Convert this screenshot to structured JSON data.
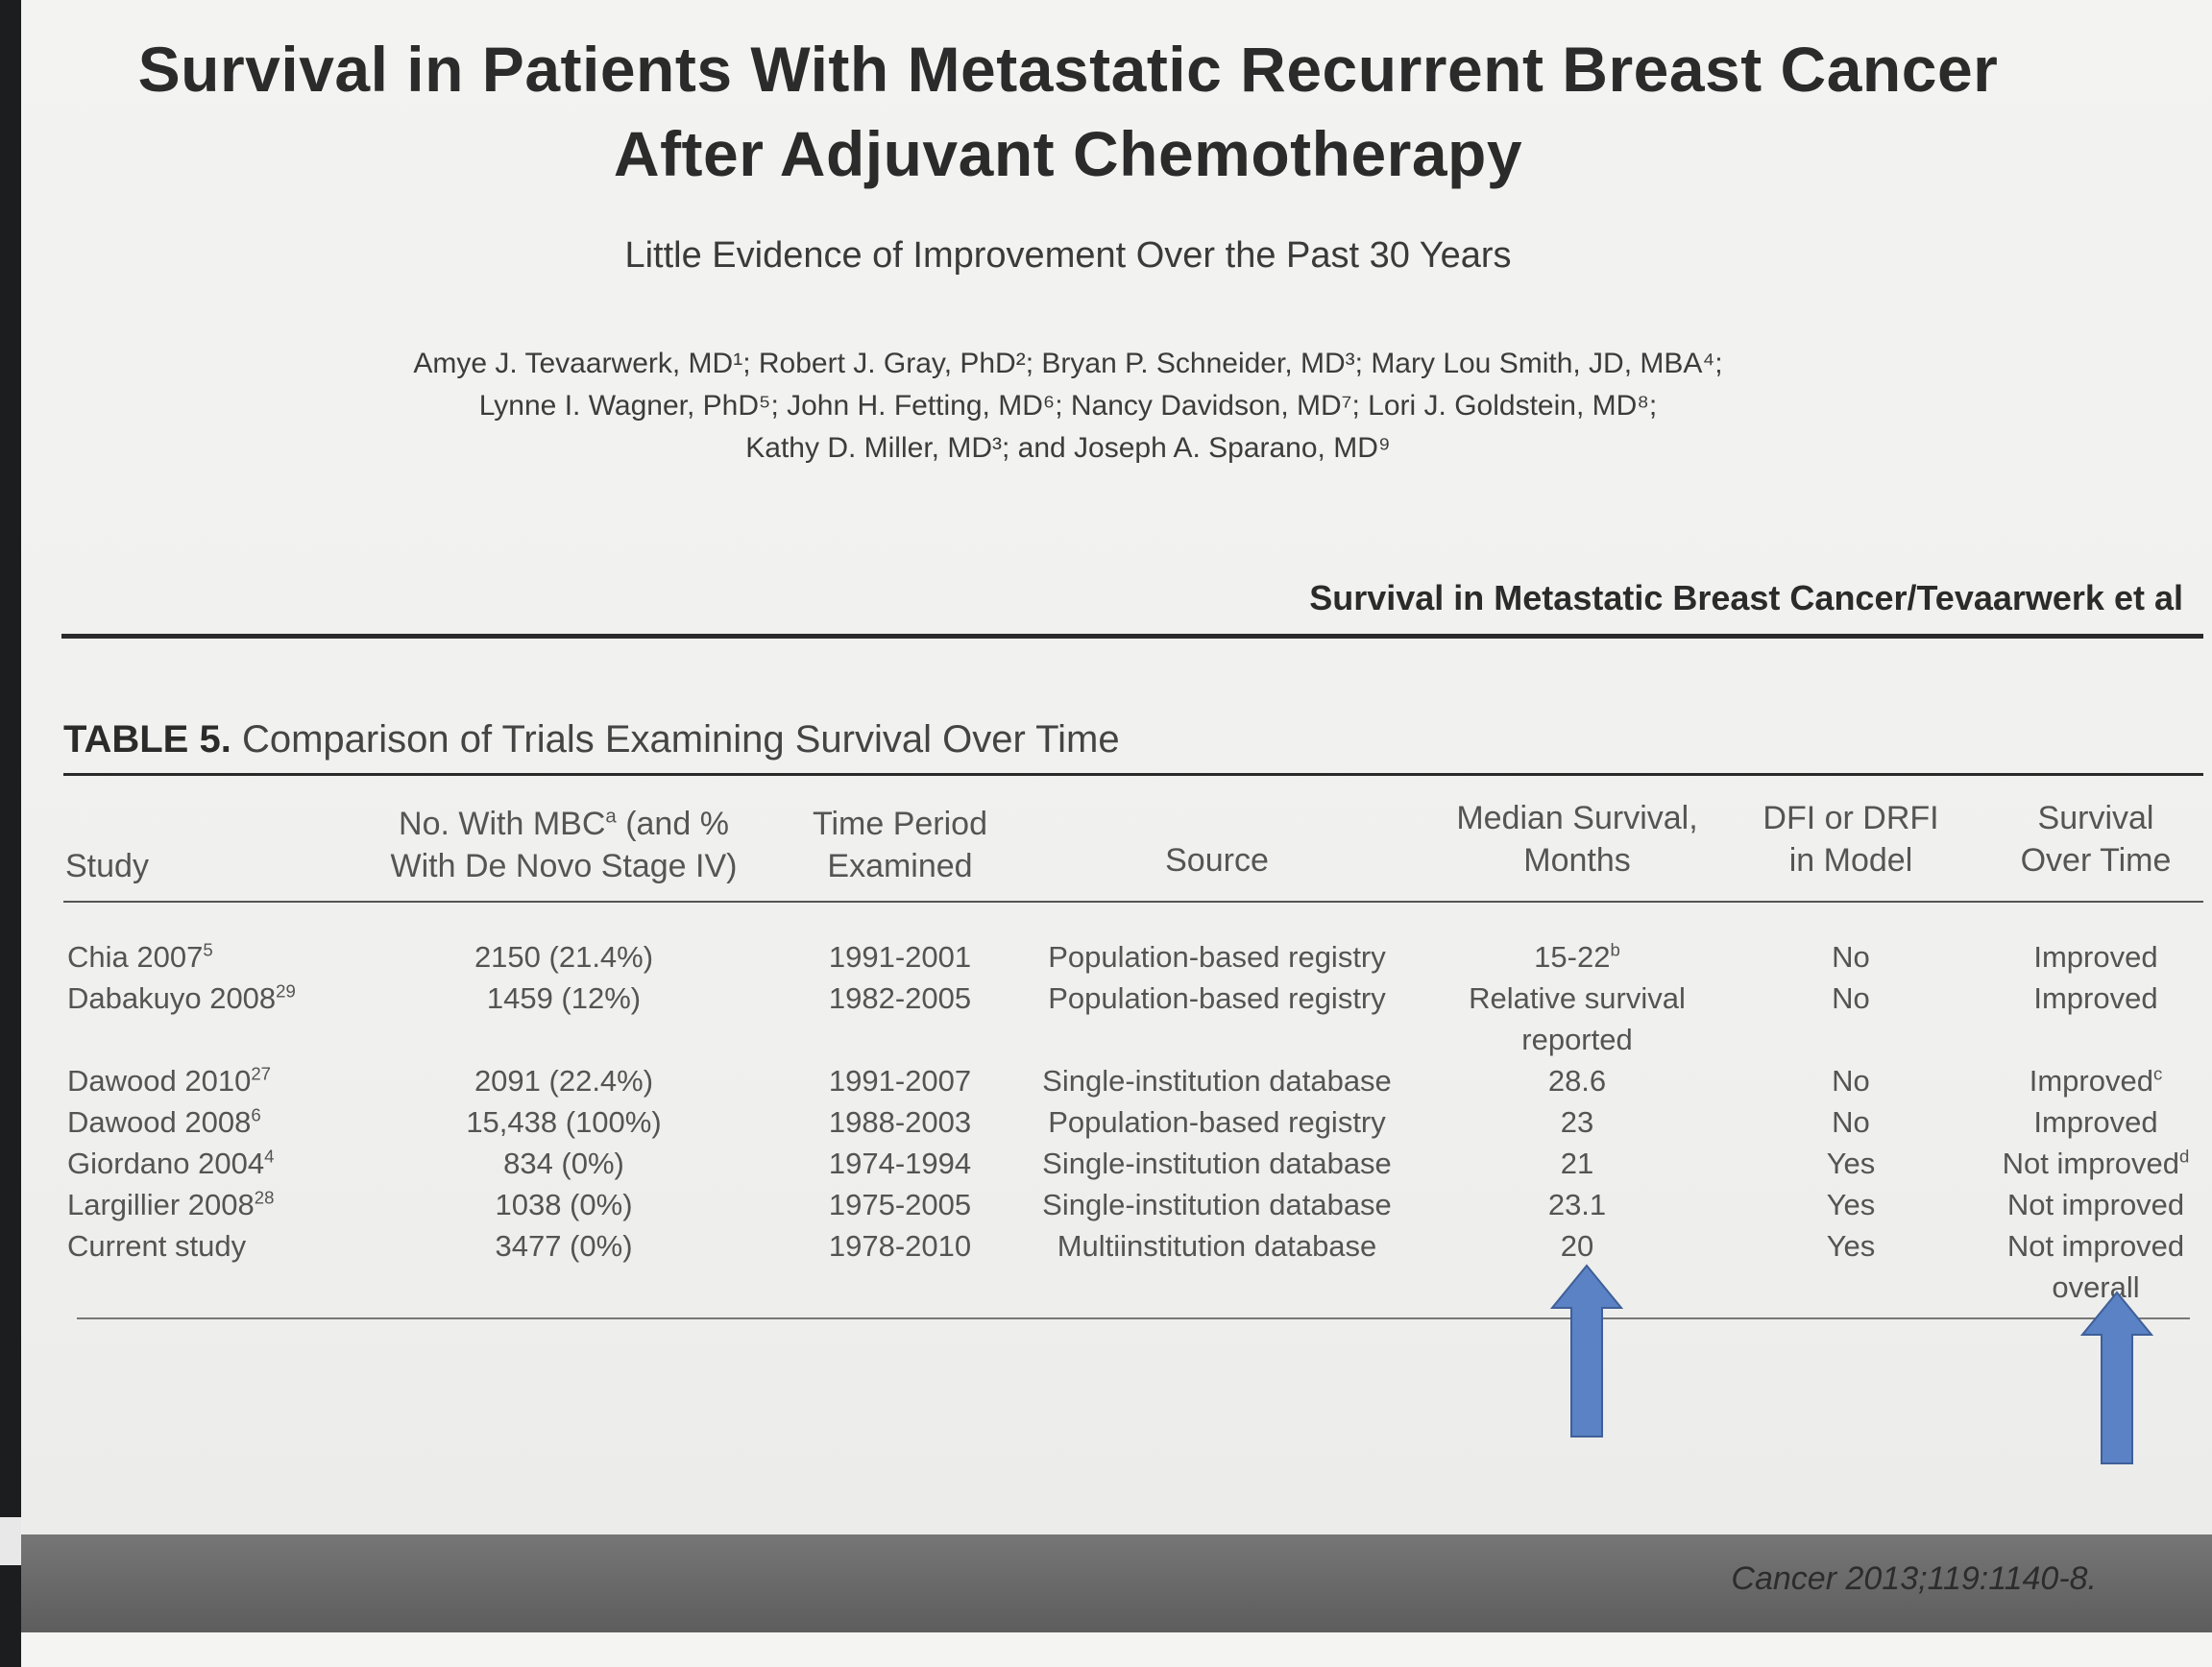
{
  "header": {
    "title_line1": "Survival in Patients With Metastatic Recurrent Breast Cancer",
    "title_line2": "After Adjuvant Chemotherapy",
    "subtitle": "Little Evidence of Improvement Over the Past 30 Years",
    "authors_line1": "Amye J. Tevaarwerk, MD¹; Robert J. Gray, PhD²; Bryan P. Schneider, MD³; Mary Lou Smith, JD, MBA⁴;",
    "authors_line2": "Lynne I. Wagner, PhD⁵; John H. Fetting, MD⁶; Nancy Davidson, MD⁷; Lori J. Goldstein, MD⁸;",
    "authors_line3": "Kathy D. Miller, MD³; and Joseph A. Sparano, MD⁹",
    "running_header": "Survival in Metastatic Breast Cancer/Tevaarwerk et al"
  },
  "table": {
    "label": "TABLE 5.",
    "caption": "Comparison of Trials Examining Survival Over Time",
    "columns": {
      "study": "Study",
      "mbc_line1": "No. With MBC",
      "mbc_sup": "a",
      "mbc_line1_tail": " (and %",
      "mbc_line2": "With De Novo Stage IV)",
      "period_line1": "Time Period",
      "period_line2": "Examined",
      "source": "Source",
      "median_line1": "Median Survival,",
      "median_line2": "Months",
      "dfi_line1": "DFI or DRFI",
      "dfi_line2": "in Model",
      "sot_line1": "Survival",
      "sot_line2": "Over Time"
    },
    "rows": [
      {
        "study": "Chia 2007",
        "ref": "5",
        "mbc": "2150 (21.4%)",
        "period": "1991-2001",
        "source": "Population-based registry",
        "median": "15-22",
        "median_sup": "b",
        "median_line2": "",
        "dfi": "No",
        "survival": "Improved",
        "survival_sup": "",
        "survival_line2": ""
      },
      {
        "study": "Dabakuyo 2008",
        "ref": "29",
        "mbc": "1459 (12%)",
        "period": "1982-2005",
        "source": "Population-based registry",
        "median": "Relative survival",
        "median_sup": "",
        "median_line2": "reported",
        "dfi": "No",
        "survival": "Improved",
        "survival_sup": "",
        "survival_line2": ""
      },
      {
        "study": "Dawood 2010",
        "ref": "27",
        "mbc": "2091 (22.4%)",
        "period": "1991-2007",
        "source": "Single-institution database",
        "median": "28.6",
        "median_sup": "",
        "median_line2": "",
        "dfi": "No",
        "survival": "Improved",
        "survival_sup": "c",
        "survival_line2": ""
      },
      {
        "study": "Dawood 2008",
        "ref": "6",
        "mbc": "15,438 (100%)",
        "period": "1988-2003",
        "source": "Population-based registry",
        "median": "23",
        "median_sup": "",
        "median_line2": "",
        "dfi": "No",
        "survival": "Improved",
        "survival_sup": "",
        "survival_line2": ""
      },
      {
        "study": "Giordano 2004",
        "ref": "4",
        "mbc": "834 (0%)",
        "period": "1974-1994",
        "source": "Single-institution database",
        "median": "21",
        "median_sup": "",
        "median_line2": "",
        "dfi": "Yes",
        "survival": "Not improved",
        "survival_sup": "d",
        "survival_line2": ""
      },
      {
        "study": "Largillier 2008",
        "ref": "28",
        "mbc": "1038 (0%)",
        "period": "1975-2005",
        "source": "Single-institution database",
        "median": "23.1",
        "median_sup": "",
        "median_line2": "",
        "dfi": "Yes",
        "survival": "Not improved",
        "survival_sup": "",
        "survival_line2": ""
      },
      {
        "study": "Current study",
        "ref": "",
        "mbc": "3477 (0%)",
        "period": "1978-2010",
        "source": "Multiinstitution database",
        "median": "20",
        "median_sup": "",
        "median_line2": "",
        "dfi": "Yes",
        "survival": "Not improved",
        "survival_sup": "",
        "survival_line2": "overall"
      }
    ]
  },
  "footer": {
    "citation": "Cancer 2013;119:1140-8."
  },
  "colors": {
    "arrow": "#5a82c4",
    "footer_bar": "#6a6a6a"
  }
}
